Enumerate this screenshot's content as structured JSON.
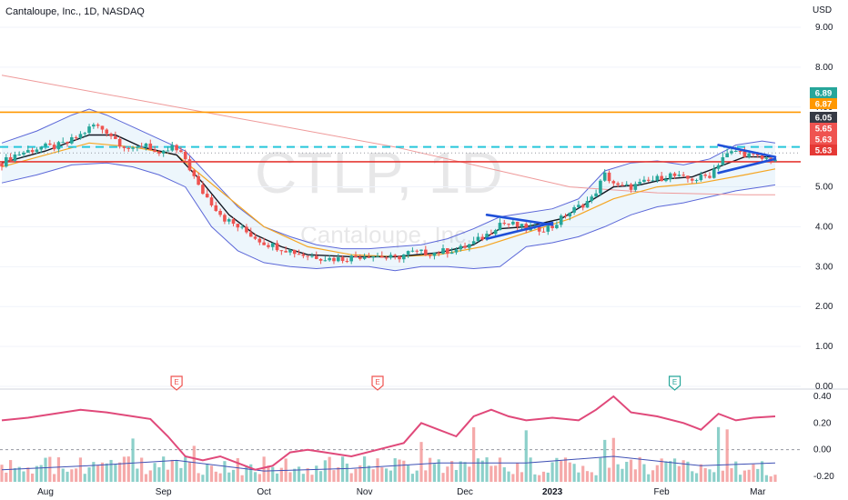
{
  "header": {
    "title": "Cantaloupe, Inc., 1D, NASDAQ"
  },
  "watermark": {
    "symbol": "CTLP, 1D",
    "company": "Cantaloupe, Inc."
  },
  "currency": "USD",
  "colors": {
    "up": "#26a69a",
    "down": "#ef5350",
    "resistance": "#ff9800",
    "support": "#e53935",
    "dashed": "#26c6da",
    "trend": "#1e4fd8",
    "bb": "#5b67d8",
    "ema": "#131722",
    "sma": "#f5a623",
    "longma": "#ef9a9a",
    "volume_up": "#80cbc4",
    "volume_down": "#f4a0a0",
    "osc_a": "#e0497a",
    "osc_b": "#3f51b5"
  },
  "chart_data": {
    "type": "candlestick",
    "price_axis": {
      "ticks": [
        "9.00",
        "8.00",
        "7.00",
        "6.00",
        "5.00",
        "4.00",
        "3.00",
        "2.00",
        "1.00",
        "0.00"
      ],
      "ylim": [
        0.0,
        9.0
      ]
    },
    "lower_axis": {
      "ticks": [
        "0.40",
        "0.20",
        "0.00",
        "-0.20"
      ],
      "ylim": [
        -0.2,
        0.4
      ]
    },
    "x_ticks": [
      "Aug",
      "Sep",
      "Oct",
      "Nov",
      "Dec",
      "2023",
      "Feb",
      "Mar"
    ],
    "price_tags": [
      {
        "label": "6.89",
        "value": 6.89,
        "color": "#26a69a"
      },
      {
        "label": "6.87",
        "value": 6.87,
        "color": "#ff9800"
      },
      {
        "label": "6.05",
        "value": 6.05,
        "color": "#363a45"
      },
      {
        "label": "5.65",
        "value": 5.65,
        "color": "#ef5350"
      },
      {
        "label": "5.63",
        "value": 5.63,
        "color": "#ef5350"
      },
      {
        "label": "5.63",
        "value": 5.63,
        "color": "#e53935"
      }
    ],
    "horizontal_levels": [
      {
        "name": "resistance",
        "value": 6.87,
        "style": "solid"
      },
      {
        "name": "dashed-level",
        "value": 6.0,
        "style": "dashed"
      },
      {
        "name": "support",
        "value": 5.63,
        "style": "solid"
      }
    ],
    "earnings_markers": [
      {
        "label": "E",
        "month": "Sep",
        "color": "#ef5350"
      },
      {
        "label": "E",
        "month": "Nov",
        "color": "#ef5350"
      },
      {
        "label": "E",
        "month": "Feb",
        "color": "#26a69a"
      }
    ],
    "close_path": [
      [
        0,
        5.6
      ],
      [
        3,
        5.8
      ],
      [
        6,
        5.9
      ],
      [
        9,
        6.0
      ],
      [
        12,
        6.0
      ],
      [
        15,
        6.1
      ],
      [
        18,
        6.3
      ],
      [
        21,
        6.55
      ],
      [
        24,
        6.4
      ],
      [
        27,
        6.1
      ],
      [
        30,
        5.9
      ],
      [
        33,
        6.1
      ],
      [
        36,
        5.75
      ],
      [
        39,
        6.0
      ],
      [
        42,
        5.7
      ],
      [
        45,
        5.0
      ],
      [
        48,
        4.6
      ],
      [
        51,
        4.2
      ],
      [
        54,
        4.0
      ],
      [
        57,
        3.8
      ],
      [
        60,
        3.6
      ],
      [
        63,
        3.5
      ],
      [
        66,
        3.4
      ],
      [
        69,
        3.3
      ],
      [
        72,
        3.25
      ],
      [
        75,
        3.2
      ],
      [
        78,
        3.2
      ],
      [
        81,
        3.25
      ],
      [
        84,
        3.3
      ],
      [
        87,
        3.25
      ],
      [
        90,
        3.2
      ],
      [
        93,
        3.35
      ],
      [
        96,
        3.35
      ],
      [
        99,
        3.35
      ],
      [
        102,
        3.4
      ],
      [
        105,
        3.45
      ],
      [
        108,
        3.6
      ],
      [
        111,
        3.8
      ],
      [
        114,
        4.1
      ],
      [
        117,
        4.05
      ],
      [
        120,
        3.95
      ],
      [
        123,
        3.95
      ],
      [
        126,
        4.0
      ],
      [
        129,
        4.3
      ],
      [
        132,
        4.5
      ],
      [
        135,
        4.7
      ],
      [
        138,
        5.3
      ],
      [
        141,
        5.0
      ],
      [
        144,
        5.0
      ],
      [
        147,
        5.1
      ],
      [
        150,
        5.2
      ],
      [
        153,
        5.3
      ],
      [
        156,
        5.2
      ],
      [
        159,
        5.2
      ],
      [
        162,
        5.3
      ],
      [
        165,
        5.75
      ],
      [
        168,
        5.9
      ],
      [
        171,
        5.8
      ],
      [
        174,
        5.7
      ],
      [
        177,
        5.7
      ]
    ],
    "bb_upper": [
      [
        0,
        6.1
      ],
      [
        8,
        6.4
      ],
      [
        16,
        6.8
      ],
      [
        20,
        6.95
      ],
      [
        24,
        6.8
      ],
      [
        30,
        6.5
      ],
      [
        36,
        6.2
      ],
      [
        42,
        5.9
      ],
      [
        48,
        5.2
      ],
      [
        54,
        4.5
      ],
      [
        60,
        4.0
      ],
      [
        66,
        3.75
      ],
      [
        72,
        3.55
      ],
      [
        78,
        3.45
      ],
      [
        84,
        3.45
      ],
      [
        90,
        3.5
      ],
      [
        96,
        3.55
      ],
      [
        102,
        3.7
      ],
      [
        108,
        3.95
      ],
      [
        114,
        4.25
      ],
      [
        120,
        4.35
      ],
      [
        126,
        4.45
      ],
      [
        132,
        4.7
      ],
      [
        138,
        5.4
      ],
      [
        144,
        5.6
      ],
      [
        150,
        5.65
      ],
      [
        156,
        5.55
      ],
      [
        162,
        5.7
      ],
      [
        168,
        6.05
      ],
      [
        174,
        6.15
      ],
      [
        177,
        6.1
      ]
    ],
    "bb_lower": [
      [
        0,
        5.1
      ],
      [
        8,
        5.3
      ],
      [
        16,
        5.55
      ],
      [
        24,
        5.6
      ],
      [
        30,
        5.5
      ],
      [
        36,
        5.3
      ],
      [
        42,
        5.0
      ],
      [
        48,
        4.0
      ],
      [
        54,
        3.4
      ],
      [
        60,
        3.1
      ],
      [
        66,
        3.0
      ],
      [
        72,
        2.95
      ],
      [
        78,
        3.0
      ],
      [
        84,
        3.0
      ],
      [
        90,
        2.9
      ],
      [
        96,
        3.0
      ],
      [
        102,
        3.0
      ],
      [
        108,
        2.95
      ],
      [
        114,
        3.0
      ],
      [
        120,
        3.5
      ],
      [
        126,
        3.6
      ],
      [
        132,
        3.75
      ],
      [
        138,
        4.0
      ],
      [
        144,
        4.3
      ],
      [
        150,
        4.5
      ],
      [
        156,
        4.6
      ],
      [
        162,
        4.75
      ],
      [
        168,
        4.9
      ],
      [
        174,
        5.0
      ],
      [
        177,
        5.05
      ]
    ],
    "long_ma": [
      [
        0,
        7.8
      ],
      [
        30,
        7.2
      ],
      [
        60,
        6.6
      ],
      [
        90,
        6.0
      ],
      [
        110,
        5.5
      ],
      [
        130,
        5.0
      ],
      [
        150,
        4.85
      ],
      [
        170,
        4.8
      ],
      [
        177,
        4.8
      ]
    ],
    "sma": [
      [
        0,
        5.5
      ],
      [
        10,
        5.8
      ],
      [
        20,
        6.1
      ],
      [
        30,
        6.0
      ],
      [
        40,
        5.8
      ],
      [
        50,
        4.9
      ],
      [
        60,
        4.0
      ],
      [
        70,
        3.5
      ],
      [
        80,
        3.3
      ],
      [
        90,
        3.25
      ],
      [
        100,
        3.3
      ],
      [
        110,
        3.5
      ],
      [
        120,
        3.85
      ],
      [
        130,
        4.2
      ],
      [
        140,
        4.7
      ],
      [
        150,
        5.0
      ],
      [
        160,
        5.1
      ],
      [
        170,
        5.3
      ],
      [
        177,
        5.45
      ]
    ],
    "ema": [
      [
        0,
        5.6
      ],
      [
        10,
        5.9
      ],
      [
        20,
        6.3
      ],
      [
        26,
        6.3
      ],
      [
        32,
        6.0
      ],
      [
        40,
        5.8
      ],
      [
        46,
        5.1
      ],
      [
        52,
        4.3
      ],
      [
        58,
        3.8
      ],
      [
        64,
        3.5
      ],
      [
        70,
        3.3
      ],
      [
        80,
        3.25
      ],
      [
        90,
        3.25
      ],
      [
        100,
        3.35
      ],
      [
        108,
        3.55
      ],
      [
        114,
        3.95
      ],
      [
        120,
        4.0
      ],
      [
        128,
        4.2
      ],
      [
        134,
        4.6
      ],
      [
        140,
        5.0
      ],
      [
        146,
        5.05
      ],
      [
        152,
        5.2
      ],
      [
        158,
        5.25
      ],
      [
        164,
        5.5
      ],
      [
        170,
        5.75
      ],
      [
        177,
        5.75
      ]
    ],
    "trendlines": [
      {
        "name": "flag-1-top",
        "from": [
          111,
          4.3
        ],
        "to": [
          126,
          4.05
        ]
      },
      {
        "name": "flag-1-bottom",
        "from": [
          111,
          3.7
        ],
        "to": [
          126,
          4.1
        ]
      },
      {
        "name": "flag-2-top",
        "from": [
          164,
          6.05
        ],
        "to": [
          177,
          5.75
        ]
      },
      {
        "name": "flag-2-bottom",
        "from": [
          164,
          5.35
        ],
        "to": [
          177,
          5.7
        ]
      }
    ],
    "oscillator_a": [
      [
        0,
        0.22
      ],
      [
        6,
        0.24
      ],
      [
        12,
        0.27
      ],
      [
        18,
        0.3
      ],
      [
        24,
        0.28
      ],
      [
        30,
        0.25
      ],
      [
        34,
        0.23
      ],
      [
        38,
        0.1
      ],
      [
        42,
        -0.05
      ],
      [
        46,
        -0.08
      ],
      [
        50,
        -0.05
      ],
      [
        54,
        -0.1
      ],
      [
        58,
        -0.15
      ],
      [
        62,
        -0.12
      ],
      [
        66,
        -0.02
      ],
      [
        70,
        0.0
      ],
      [
        74,
        -0.02
      ],
      [
        80,
        -0.05
      ],
      [
        86,
        0.0
      ],
      [
        92,
        0.05
      ],
      [
        96,
        0.2
      ],
      [
        100,
        0.15
      ],
      [
        104,
        0.1
      ],
      [
        108,
        0.25
      ],
      [
        112,
        0.3
      ],
      [
        116,
        0.25
      ],
      [
        120,
        0.22
      ],
      [
        126,
        0.24
      ],
      [
        132,
        0.22
      ],
      [
        136,
        0.3
      ],
      [
        140,
        0.4
      ],
      [
        144,
        0.28
      ],
      [
        150,
        0.25
      ],
      [
        156,
        0.2
      ],
      [
        160,
        0.15
      ],
      [
        164,
        0.27
      ],
      [
        168,
        0.22
      ],
      [
        172,
        0.24
      ],
      [
        177,
        0.25
      ]
    ],
    "oscillator_b": [
      [
        0,
        -0.15
      ],
      [
        20,
        -0.12
      ],
      [
        40,
        -0.08
      ],
      [
        60,
        -0.16
      ],
      [
        80,
        -0.14
      ],
      [
        100,
        -0.1
      ],
      [
        120,
        -0.1
      ],
      [
        140,
        -0.05
      ],
      [
        160,
        -0.12
      ],
      [
        177,
        -0.1
      ]
    ]
  }
}
